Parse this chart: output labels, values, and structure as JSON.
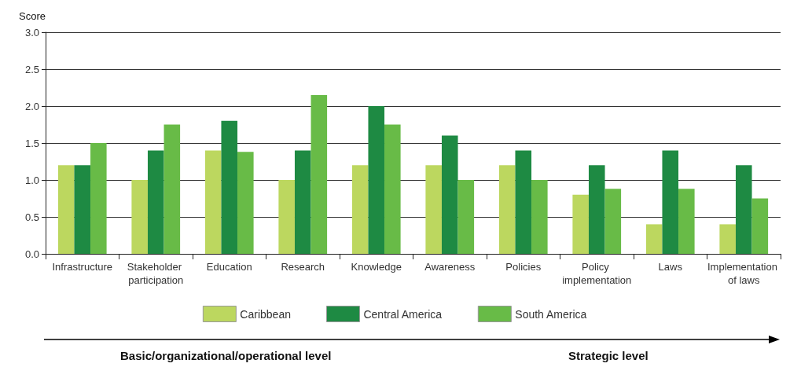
{
  "chart_data": {
    "type": "bar",
    "ylabel": "Score",
    "categories": [
      "Infrastructure",
      "Stakeholder participation",
      "Education",
      "Research",
      "Knowledge",
      "Awareness",
      "Policies",
      "Policy implementation",
      "Laws",
      "Implementation of laws"
    ],
    "series": [
      {
        "name": "Caribbean",
        "color": "#bcd75f",
        "values": [
          1.2,
          1.0,
          1.4,
          1.0,
          1.2,
          1.2,
          1.2,
          0.8,
          0.4,
          0.4
        ]
      },
      {
        "name": "Central America",
        "color": "#1e8a43",
        "values": [
          1.2,
          1.4,
          1.8,
          1.4,
          2.0,
          1.6,
          1.4,
          1.2,
          1.4,
          1.2
        ]
      },
      {
        "name": "South America",
        "color": "#68bb47",
        "values": [
          1.5,
          1.75,
          1.38,
          2.15,
          1.75,
          1.0,
          1.0,
          0.88,
          0.88,
          0.75
        ]
      }
    ],
    "ylim": [
      0,
      3
    ],
    "yticks": [
      {
        "value": 0,
        "label": "0.0"
      },
      {
        "value": 0.5,
        "label": "0.5"
      },
      {
        "value": 1,
        "label": "1.0"
      },
      {
        "value": 1.5,
        "label": "1.5"
      },
      {
        "value": 2,
        "label": "2.0"
      },
      {
        "value": 2.5,
        "label": "2.5"
      },
      {
        "value": 3,
        "label": "3.0"
      }
    ],
    "grid": "y",
    "legend": "bottom",
    "annotations": [
      "Basic/organizational/operational level",
      "Strategic level"
    ]
  }
}
